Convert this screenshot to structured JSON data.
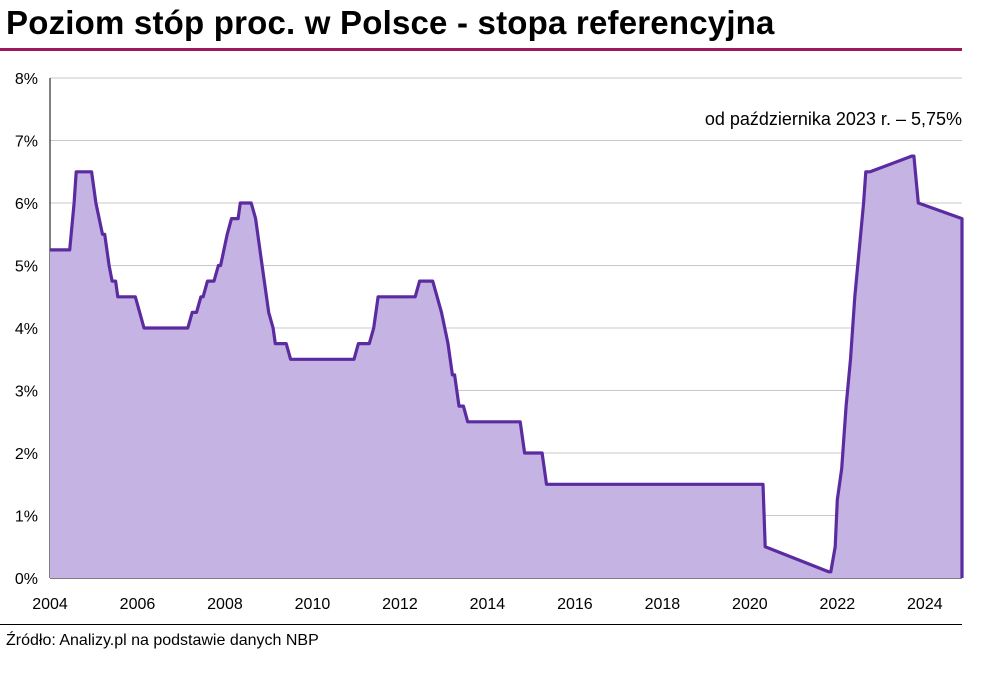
{
  "header": {
    "title": "Poziom stóp proc. w Polsce - stopa referencyjna"
  },
  "footer": {
    "source": "Źródło: Analizy.pl na podstawie danych NBP"
  },
  "chart_data": {
    "type": "area",
    "title": "Poziom stóp proc. w Polsce - stopa referencyjna",
    "xlabel": "",
    "ylabel": "",
    "annotation": "od października  2023 r. – 5,75%",
    "xlim": [
      2004,
      2024.85
    ],
    "ylim": [
      0,
      8
    ],
    "y_ticks": [
      "0%",
      "1%",
      "2%",
      "3%",
      "4%",
      "5%",
      "6%",
      "7%",
      "8%"
    ],
    "x_ticks": [
      "2004",
      "2006",
      "2008",
      "2010",
      "2012",
      "2014",
      "2016",
      "2018",
      "2020",
      "2022",
      "2024"
    ],
    "grid": true,
    "colors": {
      "line": "#5b2ca0",
      "fill": "#c5b3e3",
      "grid": "#c8c8c8"
    },
    "series": [
      {
        "x": [
          2004.0,
          2004.4,
          2004.45,
          2004.55,
          2004.6,
          2004.65,
          2004.95,
          2005.05,
          2005.2,
          2005.25,
          2005.35,
          2005.42,
          2005.5,
          2005.55,
          2005.65,
          2005.75,
          2005.95,
          2006.05,
          2006.15,
          2006.8,
          2007.15,
          2007.25,
          2007.35,
          2007.45,
          2007.5,
          2007.6,
          2007.75,
          2007.85,
          2007.9,
          2008.05,
          2008.15,
          2008.2,
          2008.3,
          2008.35,
          2008.6,
          2008.7,
          2008.85,
          2009.0,
          2009.1,
          2009.15,
          2009.4,
          2009.5,
          2010.0,
          2010.95,
          2011.05,
          2011.3,
          2011.4,
          2011.5,
          2011.6,
          2012.35,
          2012.45,
          2012.75,
          2012.95,
          2013.1,
          2013.2,
          2013.25,
          2013.35,
          2013.45,
          2013.55,
          2014.75,
          2014.85,
          2015.25,
          2015.35,
          2016.0,
          2020.2,
          2020.3,
          2020.35,
          2021.8,
          2021.85,
          2021.95,
          2022.0,
          2022.1,
          2022.2,
          2022.3,
          2022.4,
          2022.6,
          2022.65,
          2022.75,
          2023.7,
          2023.75,
          2023.85,
          2024.85
        ],
        "y": [
          5.25,
          5.25,
          5.25,
          6.0,
          6.5,
          6.5,
          6.5,
          6.0,
          5.5,
          5.5,
          5.0,
          4.75,
          4.75,
          4.5,
          4.5,
          4.5,
          4.5,
          4.25,
          4.0,
          4.0,
          4.0,
          4.25,
          4.25,
          4.5,
          4.5,
          4.75,
          4.75,
          5.0,
          5.0,
          5.5,
          5.75,
          5.75,
          5.75,
          6.0,
          6.0,
          5.75,
          5.0,
          4.25,
          4.0,
          3.75,
          3.75,
          3.5,
          3.5,
          3.5,
          3.75,
          3.75,
          4.0,
          4.5,
          4.5,
          4.5,
          4.75,
          4.75,
          4.25,
          3.75,
          3.25,
          3.25,
          2.75,
          2.75,
          2.5,
          2.5,
          2.0,
          2.0,
          1.5,
          1.5,
          1.5,
          1.5,
          0.5,
          0.1,
          0.1,
          0.5,
          1.25,
          1.75,
          2.75,
          3.5,
          4.5,
          6.0,
          6.5,
          6.5,
          6.75,
          6.75,
          6.0,
          5.75
        ]
      }
    ]
  }
}
